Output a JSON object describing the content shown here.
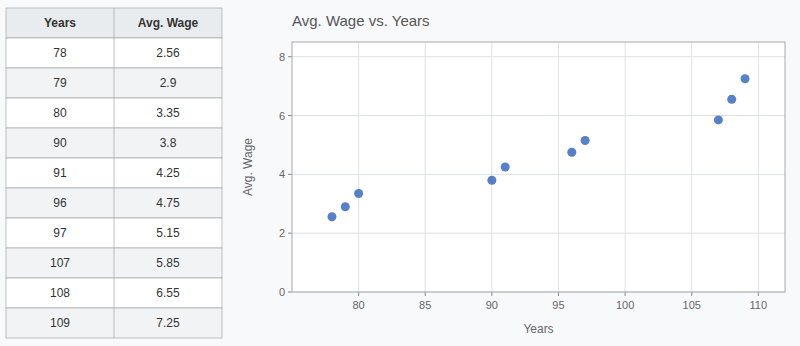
{
  "chart_data": {
    "type": "scatter",
    "title": "Avg. Wage vs. Years",
    "x_label": "Years",
    "y_label": "Avg. Wage",
    "x": [
      78,
      79,
      80,
      90,
      91,
      96,
      97,
      107,
      108,
      109
    ],
    "values": [
      2.56,
      2.9,
      3.35,
      3.8,
      4.25,
      4.75,
      5.15,
      5.85,
      6.55,
      7.25
    ],
    "color": "#4472C4",
    "xlim": [
      75,
      112
    ],
    "ylim": [
      0,
      8.5
    ],
    "xticks": [
      80,
      85,
      90,
      95,
      100,
      105,
      110
    ],
    "yticks": [
      0,
      2,
      4,
      6,
      8
    ],
    "grid": true
  }
}
